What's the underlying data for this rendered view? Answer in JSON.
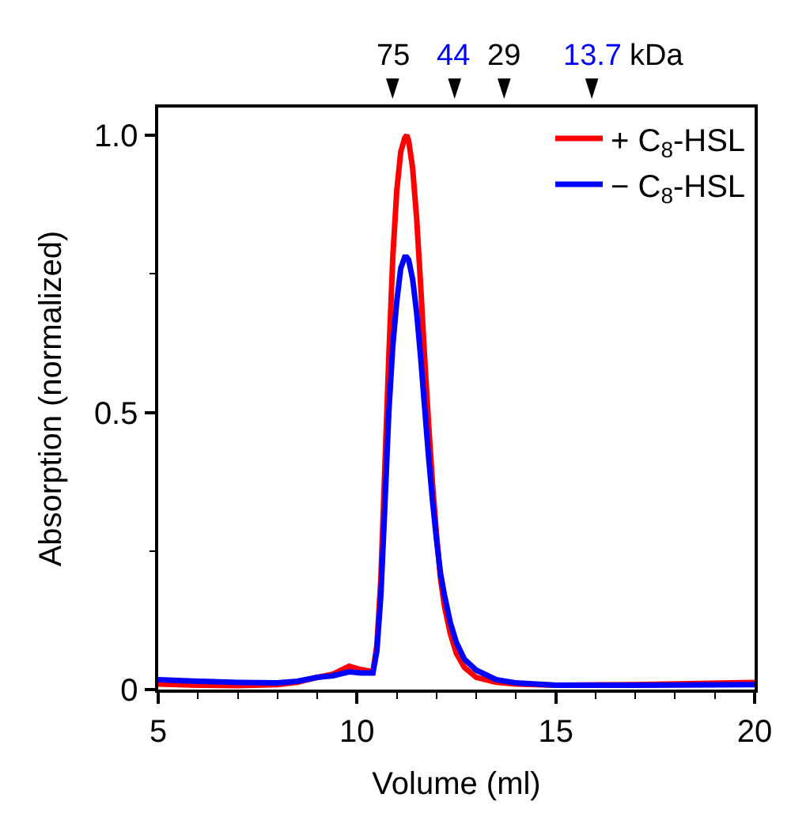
{
  "chart_data": {
    "type": "line",
    "xlabel": "Volume (ml)",
    "ylabel": "Absorption (normalized)",
    "xlim": [
      5,
      20
    ],
    "xticks": [
      5,
      10,
      15,
      20
    ],
    "ylim": [
      0,
      1.05
    ],
    "yticks": [
      0,
      {
        "value": 0.5,
        "label": "0.5"
      },
      {
        "value": 1.0,
        "label": "1.0"
      }
    ],
    "legend": "top right",
    "marker": "none",
    "line_style": "solid",
    "series": [
      {
        "name": "+ C$_{8}$-HSL",
        "color": "#ff0000",
        "x": [
          5,
          6,
          7,
          8,
          8.5,
          9,
          9.4,
          9.8,
          10.1,
          10.4,
          10.5,
          10.6,
          10.7,
          10.8,
          10.9,
          11.0,
          11.1,
          11.2,
          11.25,
          11.3,
          11.4,
          11.5,
          11.6,
          11.7,
          11.8,
          11.9,
          12.0,
          12.1,
          12.2,
          12.35,
          12.5,
          12.7,
          13,
          13.5,
          14,
          15,
          17,
          20
        ],
        "values": [
          0.01,
          0.008,
          0.007,
          0.009,
          0.013,
          0.022,
          0.028,
          0.042,
          0.036,
          0.032,
          0.08,
          0.2,
          0.4,
          0.6,
          0.78,
          0.9,
          0.97,
          0.995,
          1.0,
          0.99,
          0.94,
          0.85,
          0.73,
          0.6,
          0.48,
          0.37,
          0.28,
          0.2,
          0.15,
          0.1,
          0.065,
          0.04,
          0.022,
          0.013,
          0.01,
          0.008,
          0.009,
          0.013
        ]
      },
      {
        "name": "− C$_{8}$-HSL",
        "color": "#0000ff",
        "x": [
          5,
          6,
          7,
          8,
          8.5,
          9,
          9.4,
          9.8,
          10.1,
          10.4,
          10.5,
          10.6,
          10.7,
          10.8,
          10.9,
          11.0,
          11.1,
          11.2,
          11.25,
          11.3,
          11.4,
          11.5,
          11.6,
          11.7,
          11.8,
          11.9,
          12.0,
          12.1,
          12.2,
          12.35,
          12.5,
          12.7,
          13,
          13.5,
          14,
          15,
          17,
          20
        ],
        "values": [
          0.018,
          0.015,
          0.013,
          0.012,
          0.015,
          0.022,
          0.025,
          0.032,
          0.03,
          0.03,
          0.07,
          0.17,
          0.33,
          0.5,
          0.62,
          0.7,
          0.76,
          0.78,
          0.78,
          0.775,
          0.74,
          0.68,
          0.6,
          0.51,
          0.42,
          0.34,
          0.27,
          0.21,
          0.17,
          0.12,
          0.085,
          0.055,
          0.035,
          0.018,
          0.012,
          0.008,
          0.008,
          0.009
        ]
      }
    ],
    "annotations": [
      "75",
      "44",
      "29",
      "13.7",
      "kDa"
    ]
  }
}
